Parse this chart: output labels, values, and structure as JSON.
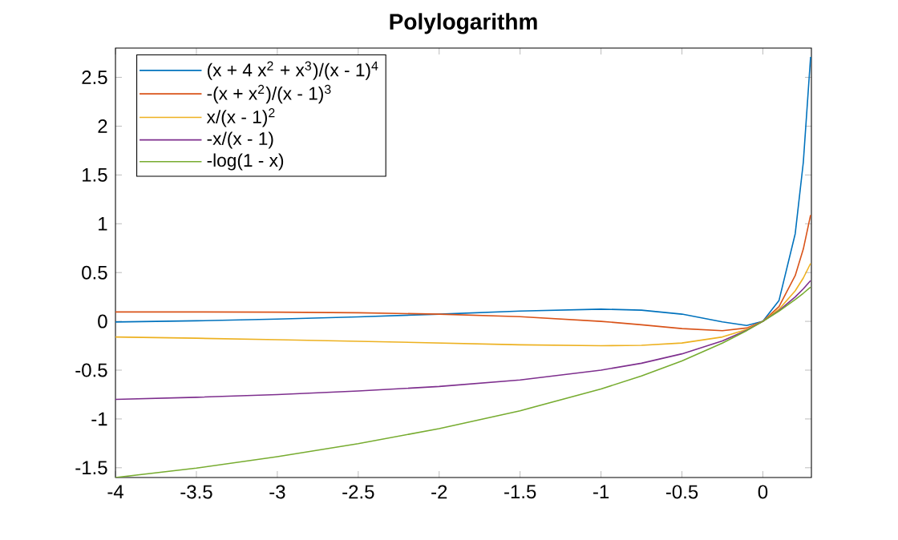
{
  "chart_data": {
    "type": "line",
    "title": "Polylogarithm",
    "x": [
      -4,
      -3.5,
      -3,
      -2.5,
      -2,
      -1.5,
      -1,
      -0.75,
      -0.5,
      -0.25,
      -0.1,
      0,
      0.1,
      0.2,
      0.25,
      0.295
    ],
    "series": [
      {
        "name": "(x + 4 x$^{2}$ + x$^{3}$)/(x - 1)$^{4}$",
        "color": "#0072bd",
        "values": [
          -0.006,
          0.006,
          0.023,
          0.046,
          0.074,
          0.106,
          0.125,
          0.115,
          0.074,
          -0.006,
          -0.042,
          0,
          0.215,
          0.898,
          1.63,
          2.71
        ]
      },
      {
        "name": "-(x + x$^{2}$)/(x - 1)$^{3}$",
        "color": "#d95319",
        "values": [
          0.096,
          0.096,
          0.094,
          0.088,
          0.074,
          0.048,
          0,
          -0.035,
          -0.074,
          -0.096,
          -0.068,
          0,
          0.151,
          0.469,
          0.741,
          1.09
        ]
      },
      {
        "name": "x/(x - 1)$^{2}$",
        "color": "#edb120",
        "values": [
          -0.16,
          -0.173,
          -0.188,
          -0.204,
          -0.222,
          -0.24,
          -0.25,
          -0.245,
          -0.222,
          -0.16,
          -0.083,
          0,
          0.124,
          0.313,
          0.444,
          0.594
        ]
      },
      {
        "name": "-x/(x - 1)",
        "color": "#7e2f8e",
        "values": [
          -0.8,
          -0.778,
          -0.75,
          -0.714,
          -0.667,
          -0.6,
          -0.5,
          -0.429,
          -0.333,
          -0.2,
          -0.091,
          0,
          0.111,
          0.25,
          0.333,
          0.418
        ]
      },
      {
        "name": "-log(1 - x)",
        "color": "#77ac30",
        "values": [
          -1.6,
          -1.504,
          -1.386,
          -1.253,
          -1.099,
          -0.916,
          -0.693,
          -0.56,
          -0.405,
          -0.223,
          -0.095,
          0,
          0.105,
          0.223,
          0.288,
          0.35
        ]
      }
    ],
    "xlim": [
      -4,
      0.3
    ],
    "ylim": [
      -1.6,
      2.8
    ],
    "xticks": [
      -4,
      -3.5,
      -3,
      -2.5,
      -2,
      -1.5,
      -1,
      -0.5,
      0
    ],
    "yticks": [
      -1.5,
      -1,
      -0.5,
      0,
      0.5,
      1,
      1.5,
      2,
      2.5
    ],
    "legend": "top left",
    "grid": false,
    "marker": "none",
    "line_style": "solid"
  }
}
